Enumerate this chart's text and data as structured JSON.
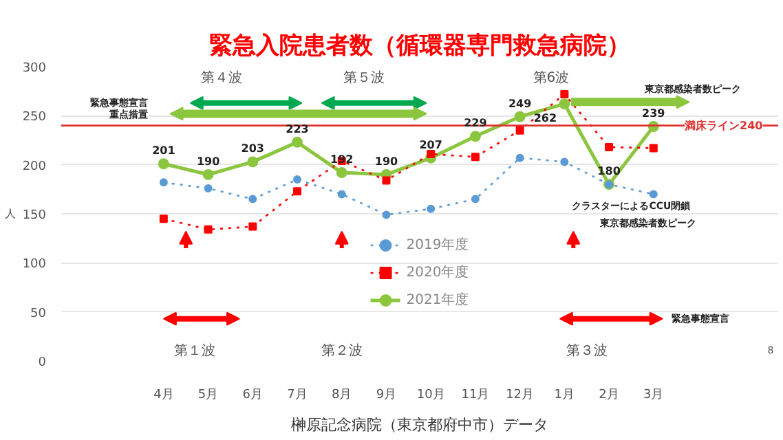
{
  "chart_data": {
    "type": "line",
    "title": "緊急入院患者数（循環器専門救急病院）",
    "ylabel": "人",
    "categories": [
      "4月",
      "5月",
      "6月",
      "7月",
      "8月",
      "9月",
      "10月",
      "11月",
      "12月",
      "1月",
      "2月",
      "3月"
    ],
    "ylim": [
      0,
      300
    ],
    "yticks": [
      0,
      50,
      100,
      150,
      200,
      250,
      300
    ],
    "grid": "y",
    "legend": "bottom",
    "series": [
      {
        "name": "2019年度",
        "color": "#5b9bd5",
        "marker": "circle",
        "line_style": "dotted",
        "values": [
          182,
          176,
          165,
          185,
          170,
          149,
          155,
          165,
          207,
          203,
          180,
          170
        ]
      },
      {
        "name": "2020年度",
        "color": "#ff0000",
        "marker": "square",
        "line_style": "dotted",
        "values": [
          145,
          134,
          137,
          173,
          204,
          184,
          211,
          208,
          235,
          272,
          218,
          217
        ]
      },
      {
        "name": "2021年度",
        "color": "#8cc63f",
        "marker": "circle",
        "line_style": "solid",
        "values": [
          201,
          190,
          203,
          223,
          192,
          190,
          207,
          229,
          249,
          262,
          180,
          239
        ],
        "value_labels": [
          "201",
          "190",
          "203",
          "223",
          "192",
          "190",
          "207",
          "229",
          "249",
          "262",
          "180",
          "239"
        ]
      }
    ],
    "ref_lines": [
      {
        "axis": "y",
        "value": 240,
        "label": "満床ライン240",
        "color": "#e03030"
      }
    ],
    "annotations": [
      "第４波",
      "第５波",
      "第6波",
      "緊急事態宣言",
      "重点措置",
      "東京都感染者数ピーク",
      "クラスターによるCCU閉鎖",
      "東京都感染者数ピーク",
      "緊急事態宣言",
      "第１波",
      "第２波",
      "第３波",
      "榊原記念病院（東京都府中市）データ",
      "8"
    ]
  }
}
